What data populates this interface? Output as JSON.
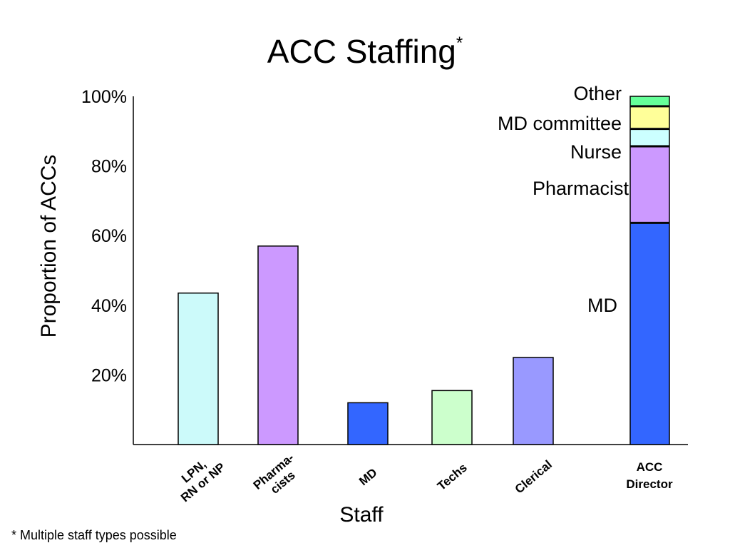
{
  "chart_data": {
    "type": "bar",
    "title": "ACC Staffing",
    "title_marker": "*",
    "xlabel": "Staff",
    "ylabel": "Proportion of ACCs",
    "ylim": [
      0,
      100
    ],
    "yticks": [
      "20%",
      "40%",
      "60%",
      "80%",
      "100%"
    ],
    "ytick_values": [
      20,
      40,
      60,
      80,
      100
    ],
    "grid": false,
    "categories": [
      [
        "LPN,",
        "RN or NP"
      ],
      [
        "Pharma-",
        "cists"
      ],
      [
        "MD"
      ],
      [
        "Techs"
      ],
      [
        "Clerical"
      ]
    ],
    "values": [
      43.5,
      57,
      12,
      15.5,
      25
    ],
    "colors": [
      "#ccfafa",
      "#cc99ff",
      "#3366ff",
      "#ccffcc",
      "#9999ff"
    ],
    "stacked_bar": {
      "category": [
        "ACC",
        "Director"
      ],
      "segments": [
        {
          "name": "MD",
          "value": 63.5,
          "color": "#3366ff"
        },
        {
          "name": "Pharmacist",
          "value": 22,
          "color": "#cc99ff"
        },
        {
          "name": "Nurse",
          "value": 5,
          "color": "#ccffff"
        },
        {
          "name": "MD committee",
          "value": 6.5,
          "color": "#ffff99"
        },
        {
          "name": "Other",
          "value": 3,
          "color": "#66ff99"
        }
      ]
    }
  },
  "footnote": "* Multiple staff types possible"
}
